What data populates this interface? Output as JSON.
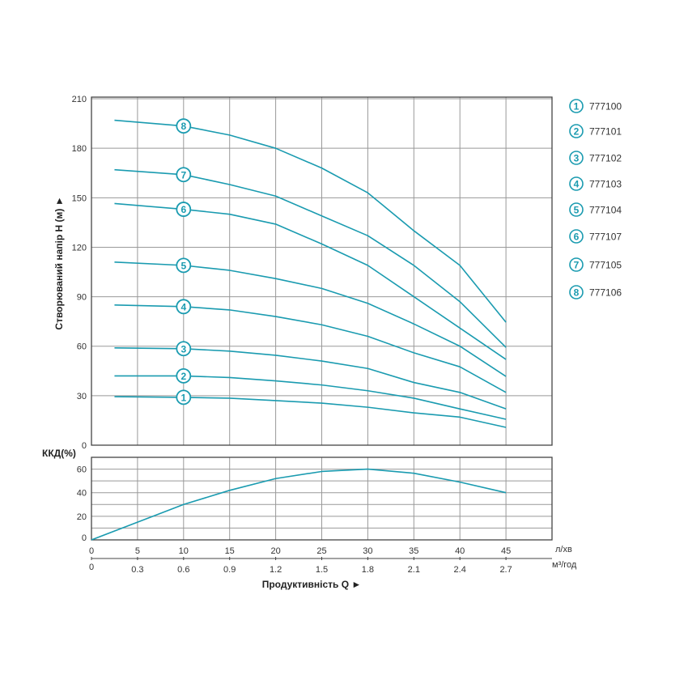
{
  "chart_data": [
    {
      "type": "line",
      "ylabel": "Створюваний напір H (м) ►",
      "xlim": [
        0,
        50
      ],
      "ylim": [
        0,
        210
      ],
      "yticks": [
        "0",
        "30",
        "60",
        "90",
        "120",
        "150",
        "180",
        "210"
      ],
      "grid": true,
      "line_color": "#1a9bb0",
      "x": [
        2.5,
        10,
        15,
        20,
        25,
        30,
        35,
        40,
        45
      ],
      "series": [
        {
          "name": "1",
          "values": [
            29.4,
            29,
            28.5,
            27,
            25.5,
            23,
            19.6,
            17,
            10.8
          ]
        },
        {
          "name": "2",
          "values": [
            42,
            42,
            41,
            39,
            36.5,
            33,
            28.5,
            22,
            15.7
          ]
        },
        {
          "name": "3",
          "values": [
            59,
            58.5,
            57,
            54.5,
            51,
            46.5,
            38,
            32,
            22
          ]
        },
        {
          "name": "4",
          "values": [
            85,
            84,
            82,
            78,
            73,
            66,
            56,
            47.5,
            32
          ]
        },
        {
          "name": "5",
          "values": [
            111,
            109,
            106,
            101,
            95,
            86,
            73.5,
            60,
            41.7
          ]
        },
        {
          "name": "6",
          "values": [
            146.5,
            143,
            140,
            134,
            122,
            109,
            90,
            71,
            52
          ]
        },
        {
          "name": "7",
          "values": [
            167,
            164,
            158,
            151,
            139,
            127,
            109,
            87,
            59.3
          ]
        },
        {
          "name": "8",
          "values": [
            197,
            193.5,
            188,
            180,
            168,
            153,
            130,
            109,
            74.5
          ]
        }
      ],
      "marker_x": 10,
      "legend": {
        "placement": "right",
        "entries": [
          {
            "num": "1",
            "label": "777100"
          },
          {
            "num": "2",
            "label": "777101"
          },
          {
            "num": "3",
            "label": "777102"
          },
          {
            "num": "4",
            "label": "777103"
          },
          {
            "num": "5",
            "label": "777104"
          },
          {
            "num": "6",
            "label": "777107"
          },
          {
            "num": "7",
            "label": "777105"
          },
          {
            "num": "8",
            "label": "777106"
          }
        ]
      }
    },
    {
      "type": "line",
      "ylabel": "ККД(%)",
      "xlabel": "Продуктивність  Q ►",
      "xlim": [
        0,
        50
      ],
      "ylim": [
        0,
        70
      ],
      "yticks": [
        "0",
        "20",
        "40",
        "60"
      ],
      "grid": true,
      "x": [
        0,
        5,
        10,
        15,
        20,
        25,
        30,
        35,
        40,
        45
      ],
      "values": [
        0,
        15,
        30,
        42,
        52,
        58,
        60,
        56.5,
        49,
        40
      ],
      "xticks_lpm": [
        "0",
        "5",
        "10",
        "15",
        "20",
        "25",
        "30",
        "35",
        "40",
        "45"
      ],
      "xunit_lpm": "л/хв",
      "xticks_m3h": [
        "0",
        "0.3",
        "0.6",
        "0.9",
        "1.2",
        "1.5",
        "1.8",
        "2.1",
        "2.4",
        "2.7"
      ],
      "xunit_m3h": "м³/год"
    }
  ]
}
